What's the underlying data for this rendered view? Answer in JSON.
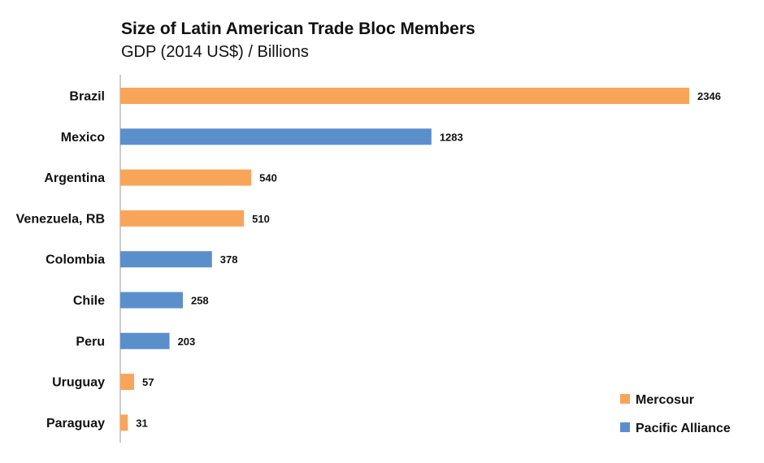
{
  "chart_data": {
    "type": "bar",
    "orientation": "horizontal",
    "title": "Size of Latin American Trade Bloc Members",
    "subtitle": "GDP (2014 US$) / Billions",
    "categories": [
      "Brazil",
      "Mexico",
      "Argentina",
      "Venezuela, RB",
      "Colombia",
      "Chile",
      "Peru",
      "Uruguay",
      "Paraguay"
    ],
    "values": [
      2346,
      1283,
      540,
      510,
      378,
      258,
      203,
      57,
      31
    ],
    "groups": [
      "Mercosur",
      "Pacific Alliance",
      "Mercosur",
      "Mercosur",
      "Pacific Alliance",
      "Pacific Alliance",
      "Pacific Alliance",
      "Mercosur",
      "Mercosur"
    ],
    "legend": [
      {
        "name": "Mercosur",
        "color": "#F8A55A"
      },
      {
        "name": "Pacific Alliance",
        "color": "#5B8FCC"
      }
    ],
    "legend_position": "bottom-right",
    "xlim": [
      0,
      2346
    ],
    "grid": false
  }
}
